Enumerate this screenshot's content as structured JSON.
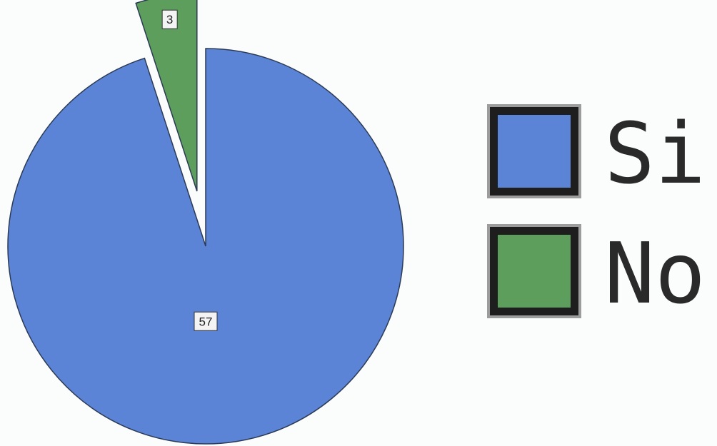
{
  "chart_data": {
    "type": "pie",
    "title": "",
    "categories": [
      "Si",
      "No"
    ],
    "values": [
      57,
      3
    ],
    "colors": [
      "#5b84d6",
      "#5d9e5c"
    ],
    "data_labels": [
      "57",
      "3"
    ],
    "exploded_slice": "No",
    "legend": {
      "placement": "right",
      "entries": [
        "Si",
        "No"
      ]
    }
  },
  "legend_items": [
    {
      "label": "Si",
      "color": "#5b84d6"
    },
    {
      "label": "No",
      "color": "#5d9e5c"
    }
  ]
}
